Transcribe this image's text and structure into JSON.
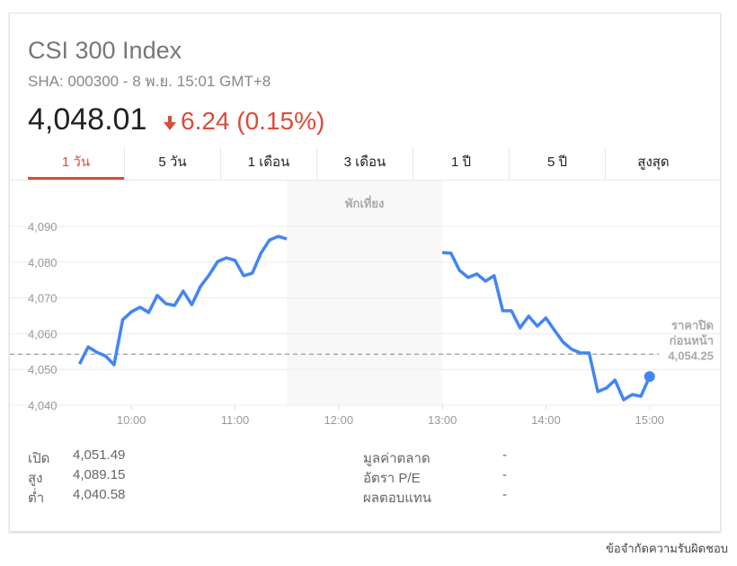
{
  "header": {
    "title": "CSI 300 Index",
    "subtitle": "SHA: 000300 - 8 พ.ย. 15:01 GMT+8",
    "price": "4,048.01",
    "change": "6.24 (0.15%)",
    "change_direction": "down",
    "change_color": "#dd4b39"
  },
  "tabs": [
    {
      "label": "1 วัน",
      "active": true
    },
    {
      "label": "5 วัน"
    },
    {
      "label": "1 เดือน"
    },
    {
      "label": "3 เดือน"
    },
    {
      "label": "1 ปี"
    },
    {
      "label": "5 ปี"
    },
    {
      "label": "สูงสุด"
    }
  ],
  "chart_data": {
    "type": "line",
    "line_color": "#4285f4",
    "break_label": "พักเที่ยง",
    "break_range": [
      "11:30",
      "13:00"
    ],
    "prev_close_label_1": "ราคาปิด",
    "prev_close_label_2": "ก่อนหน้า",
    "prev_close": 4054.25,
    "prev_close_text": "4,054.25",
    "ylim": [
      4040,
      4102
    ],
    "y_ticks": [
      "4,090",
      "4,080",
      "4,070",
      "4,060",
      "4,050",
      "4,040"
    ],
    "y_tick_values": [
      4090,
      4080,
      4070,
      4060,
      4050,
      4040
    ],
    "x_ticks": [
      "10:00",
      "11:00",
      "12:00",
      "13:00",
      "14:00",
      "15:00"
    ],
    "grid": true,
    "series": [
      {
        "segment": "morning",
        "x": [
          "9:30",
          "9:35",
          "9:40",
          "9:45",
          "9:50",
          "9:55",
          "10:00",
          "10:05",
          "10:10",
          "10:15",
          "10:20",
          "10:25",
          "10:30",
          "10:35",
          "10:40",
          "10:45",
          "10:50",
          "10:55",
          "11:00",
          "11:05",
          "11:10",
          "11:15",
          "11:20",
          "11:25",
          "11:30"
        ],
        "y": [
          4051.5,
          4056.3,
          4054.8,
          4053.8,
          4051.3,
          4063.9,
          4066.1,
          4067.4,
          4065.9,
          4070.7,
          4068.4,
          4067.9,
          4071.9,
          4068.1,
          4073.2,
          4076.4,
          4080.2,
          4081.2,
          4080.5,
          4076.2,
          4076.9,
          4082.5,
          4086.2,
          4087.2,
          4086.5
        ]
      },
      {
        "segment": "afternoon",
        "x": [
          "13:00",
          "13:05",
          "13:10",
          "13:15",
          "13:20",
          "13:25",
          "13:30",
          "13:35",
          "13:40",
          "13:45",
          "13:50",
          "13:55",
          "14:00",
          "14:05",
          "14:10",
          "14:15",
          "14:20",
          "14:25",
          "14:30",
          "14:35",
          "14:40",
          "14:45",
          "14:50",
          "14:55",
          "15:00"
        ],
        "y": [
          4082.7,
          4082.5,
          4077.7,
          4075.7,
          4076.7,
          4074.7,
          4076.2,
          4066.4,
          4066.4,
          4061.6,
          4064.9,
          4062.1,
          4064.4,
          4060.9,
          4057.6,
          4055.6,
          4054.6,
          4054.6,
          4043.8,
          4044.8,
          4047.0,
          4041.5,
          4043.0,
          4042.5,
          4048.0
        ]
      }
    ]
  },
  "stats": {
    "left": [
      {
        "label": "เปิด",
        "value": "4,051.49"
      },
      {
        "label": "สูง",
        "value": "4,089.15"
      },
      {
        "label": "ต่ำ",
        "value": "4,040.58"
      }
    ],
    "right": [
      {
        "label": "มูลค่าตลาด",
        "value": "-"
      },
      {
        "label": "อัตรา P/E",
        "value": "-"
      },
      {
        "label": "ผลตอบแทน",
        "value": "-"
      }
    ]
  },
  "footer": {
    "disclaimer": "ข้อจำกัดความรับผิดชอบ"
  }
}
